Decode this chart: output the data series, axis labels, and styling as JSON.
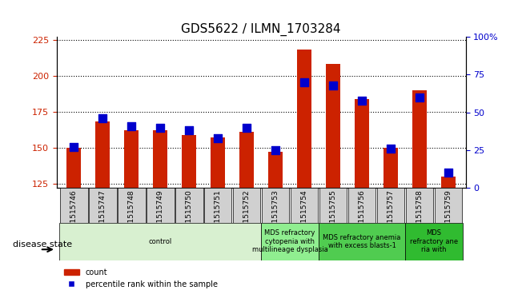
{
  "title": "GDS5622 / ILMN_1703284",
  "samples": [
    "GSM1515746",
    "GSM1515747",
    "GSM1515748",
    "GSM1515749",
    "GSM1515750",
    "GSM1515751",
    "GSM1515752",
    "GSM1515753",
    "GSM1515754",
    "GSM1515755",
    "GSM1515756",
    "GSM1515757",
    "GSM1515758",
    "GSM1515759"
  ],
  "counts": [
    150,
    168,
    162,
    162,
    159,
    157,
    161,
    147,
    218,
    208,
    184,
    150,
    190,
    130
  ],
  "percentiles": [
    27,
    46,
    41,
    40,
    38,
    33,
    40,
    25,
    70,
    68,
    58,
    26,
    60,
    10
  ],
  "ylim_left": [
    122,
    227
  ],
  "ylim_right": [
    0,
    100
  ],
  "yticks_left": [
    125,
    150,
    175,
    200,
    225
  ],
  "yticks_right": [
    0,
    25,
    50,
    75,
    100
  ],
  "bar_color": "#cc2200",
  "dot_color": "#0000cc",
  "tick_bg": "#d0d0d0",
  "disease_groups": [
    {
      "label": "control",
      "start": 0,
      "end": 7,
      "color": "#d8f0d0"
    },
    {
      "label": "MDS refractory\ncytopenia with\nmultilineage dysplasia",
      "start": 7,
      "end": 9,
      "color": "#90ee90"
    },
    {
      "label": "MDS refractory anemia\nwith excess blasts-1",
      "start": 9,
      "end": 12,
      "color": "#50cc50"
    },
    {
      "label": "MDS\nrefractory ane\nria with",
      "start": 12,
      "end": 14,
      "color": "#30bb30"
    }
  ],
  "legend_count_label": "count",
  "legend_pct_label": "percentile rank within the sample",
  "disease_state_label": "disease state",
  "bar_width": 0.5,
  "dot_size": 60,
  "left_label_color": "#cc2200",
  "right_label_color": "#0000cc"
}
